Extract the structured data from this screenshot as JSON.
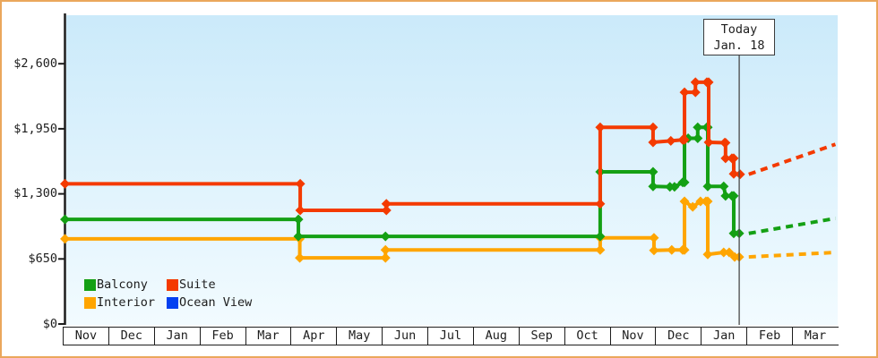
{
  "chart_data": {
    "type": "line",
    "style": "stepped price history with diamond markers and dashed forecast",
    "x": {
      "months": [
        "Nov",
        "Dec",
        "Jan",
        "Feb",
        "Mar",
        "Apr",
        "May",
        "Jun",
        "Jul",
        "Aug",
        "Sep",
        "Oct",
        "Nov",
        "Dec",
        "Jan",
        "Feb",
        "Mar"
      ],
      "month_count": 17
    },
    "y": {
      "labels": [
        "$2,600",
        "$1,950",
        "$1,300",
        "$650",
        "$0"
      ],
      "values": [
        2600,
        1950,
        1300,
        650,
        0
      ],
      "ylim": [
        0,
        3000
      ]
    },
    "today": {
      "line1": "Today",
      "line2": "Jan. 18",
      "month_position": 14.84
    },
    "legend": [
      {
        "label": "Balcony",
        "color": "#14a014"
      },
      {
        "label": "Suite",
        "color": "#f43a00"
      },
      {
        "label": "Interior",
        "color": "#ffa500"
      },
      {
        "label": "Ocean View",
        "color": "#0540f0"
      }
    ],
    "series": [
      {
        "name": "Interior",
        "color": "#ffa500",
        "points": [
          [
            0.05,
            850
          ],
          [
            5.2,
            850
          ],
          [
            5.2,
            660
          ],
          [
            7.08,
            660
          ],
          [
            7.08,
            740
          ],
          [
            11.79,
            740
          ],
          [
            11.79,
            860
          ],
          [
            12.97,
            860
          ],
          [
            12.97,
            735
          ],
          [
            13.36,
            740
          ],
          [
            13.6,
            740
          ],
          [
            13.64,
            740
          ],
          [
            13.64,
            1225
          ],
          [
            13.82,
            1170
          ],
          [
            13.99,
            1225
          ],
          [
            14.11,
            1225
          ],
          [
            14.15,
            1225
          ],
          [
            14.15,
            695
          ],
          [
            14.5,
            715
          ],
          [
            14.62,
            715
          ],
          [
            14.74,
            670
          ],
          [
            14.84,
            670
          ]
        ],
        "forecast": [
          [
            15.05,
            670
          ],
          [
            16.95,
            715
          ]
        ]
      },
      {
        "name": "Balcony",
        "color": "#14a014",
        "points": [
          [
            0.05,
            1045
          ],
          [
            5.17,
            1045
          ],
          [
            5.17,
            875
          ],
          [
            7.08,
            875
          ],
          [
            11.79,
            875
          ],
          [
            11.79,
            1520
          ],
          [
            12.95,
            1520
          ],
          [
            12.95,
            1375
          ],
          [
            13.32,
            1370
          ],
          [
            13.42,
            1370
          ],
          [
            13.6,
            1415
          ],
          [
            13.64,
            1415
          ],
          [
            13.64,
            1850
          ],
          [
            13.72,
            1855
          ],
          [
            13.93,
            1855
          ],
          [
            13.93,
            1965
          ],
          [
            14.13,
            1965
          ],
          [
            14.15,
            1965
          ],
          [
            14.15,
            1375
          ],
          [
            14.5,
            1375
          ],
          [
            14.54,
            1280
          ],
          [
            14.68,
            1280
          ],
          [
            14.72,
            1280
          ],
          [
            14.72,
            905
          ],
          [
            14.84,
            905
          ]
        ],
        "forecast": [
          [
            15.05,
            905
          ],
          [
            16.95,
            1055
          ]
        ]
      },
      {
        "name": "Suite",
        "color": "#f43a00",
        "points": [
          [
            0.05,
            1400
          ],
          [
            5.21,
            1400
          ],
          [
            5.21,
            1135
          ],
          [
            7.1,
            1135
          ],
          [
            7.1,
            1200
          ],
          [
            11.79,
            1200
          ],
          [
            11.79,
            1965
          ],
          [
            12.95,
            1965
          ],
          [
            12.95,
            1815
          ],
          [
            13.34,
            1830
          ],
          [
            13.6,
            1840
          ],
          [
            13.64,
            1840
          ],
          [
            13.64,
            2315
          ],
          [
            13.88,
            2315
          ],
          [
            13.88,
            2415
          ],
          [
            14.13,
            2415
          ],
          [
            14.17,
            2415
          ],
          [
            14.17,
            1815
          ],
          [
            14.52,
            1810
          ],
          [
            14.54,
            1810
          ],
          [
            14.54,
            1655
          ],
          [
            14.68,
            1655
          ],
          [
            14.72,
            1655
          ],
          [
            14.72,
            1500
          ],
          [
            14.86,
            1495
          ]
        ],
        "forecast": [
          [
            15.05,
            1495
          ],
          [
            16.95,
            1795
          ]
        ]
      },
      {
        "name": "Ocean View",
        "color": "#0540f0",
        "points": [],
        "forecast": []
      }
    ]
  }
}
